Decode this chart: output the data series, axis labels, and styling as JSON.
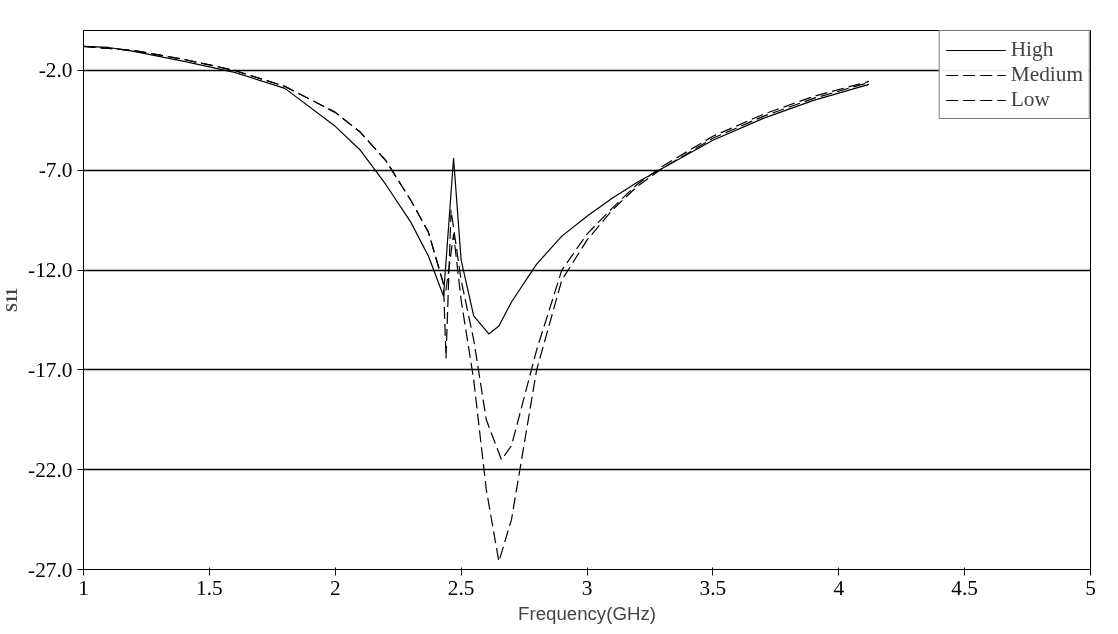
{
  "chart_data": {
    "type": "line",
    "xlabel": "Frequency(GHz)",
    "ylabel": "S11",
    "xlim": [
      1,
      5
    ],
    "xticks": [
      1,
      1.5,
      2,
      2.5,
      3,
      3.5,
      4,
      4.5,
      5
    ],
    "ylim": [
      -27,
      0
    ],
    "yticks": [
      {
        "value": -2,
        "label": "-2.0"
      },
      {
        "value": -7,
        "label": "-7.0"
      },
      {
        "value": -12,
        "label": "-12.0"
      },
      {
        "value": -17,
        "label": "-17.0"
      },
      {
        "value": -22,
        "label": "-22.0"
      },
      {
        "value": -27,
        "label": "-27.0"
      }
    ],
    "grid": "y",
    "legend": "top right",
    "marker": "none",
    "series": [
      {
        "name": "High",
        "color": "#000000",
        "line_style": "solid",
        "x": [
          1.0,
          1.1,
          1.2,
          1.4,
          1.6,
          1.8,
          2.0,
          2.1,
          2.2,
          2.3,
          2.37,
          2.43,
          2.47,
          2.5,
          2.55,
          2.61,
          2.65,
          2.7,
          2.8,
          2.9,
          3.0,
          3.1,
          3.2,
          3.3,
          3.5,
          3.7,
          3.9,
          4.12
        ],
        "values": [
          -0.8,
          -0.85,
          -1.05,
          -1.55,
          -2.1,
          -2.9,
          -4.8,
          -6.0,
          -7.7,
          -9.6,
          -11.3,
          -13.3,
          -6.4,
          -11.5,
          -14.3,
          -15.2,
          -14.8,
          -13.6,
          -11.7,
          -10.3,
          -9.3,
          -8.4,
          -7.6,
          -6.9,
          -5.5,
          -4.4,
          -3.5,
          -2.7
        ]
      },
      {
        "name": "Medium",
        "color": "#000000",
        "line_style": "dashed",
        "x": [
          1.0,
          1.2,
          1.4,
          1.6,
          1.8,
          2.0,
          2.1,
          2.2,
          2.3,
          2.37,
          2.43,
          2.44,
          2.46,
          2.5,
          2.55,
          2.6,
          2.66,
          2.7,
          2.8,
          2.9,
          3.0,
          3.1,
          3.2,
          3.3,
          3.5,
          3.7,
          3.9,
          4.12
        ],
        "values": [
          -0.8,
          -1.0,
          -1.45,
          -2.0,
          -2.8,
          -4.1,
          -5.1,
          -6.5,
          -8.5,
          -10.1,
          -12.7,
          -16.4,
          -9.0,
          -12.5,
          -15.5,
          -19.5,
          -21.5,
          -20.8,
          -16.0,
          -12.0,
          -10.2,
          -8.9,
          -7.7,
          -6.8,
          -5.3,
          -4.2,
          -3.3,
          -2.55
        ]
      },
      {
        "name": "Low",
        "color": "#000000",
        "line_style": "dashed",
        "x": [
          1.0,
          1.2,
          1.4,
          1.6,
          1.8,
          2.0,
          2.1,
          2.2,
          2.3,
          2.37,
          2.43,
          2.44,
          2.47,
          2.5,
          2.55,
          2.6,
          2.65,
          2.7,
          2.8,
          2.9,
          3.0,
          3.1,
          3.2,
          3.3,
          3.5,
          3.7,
          3.9,
          4.12
        ],
        "values": [
          -0.8,
          -1.0,
          -1.45,
          -2.0,
          -2.8,
          -4.1,
          -5.1,
          -6.5,
          -8.5,
          -10.1,
          -12.7,
          -13.0,
          -10.2,
          -13.5,
          -17.5,
          -23.0,
          -26.6,
          -24.5,
          -17.0,
          -12.5,
          -10.5,
          -9.0,
          -7.8,
          -6.9,
          -5.4,
          -4.3,
          -3.4,
          -2.6
        ]
      }
    ]
  }
}
